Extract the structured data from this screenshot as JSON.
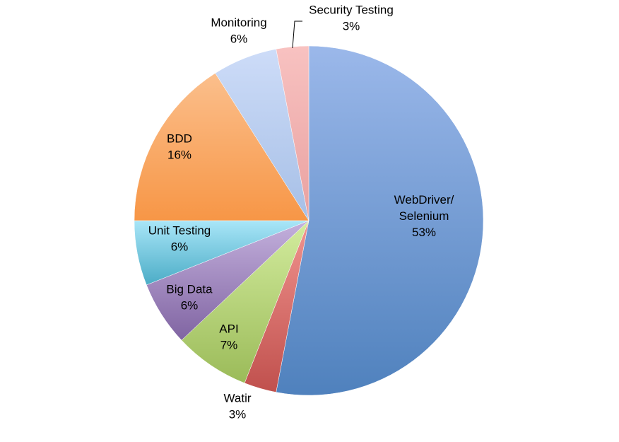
{
  "chart_data": {
    "type": "pie",
    "title": "",
    "slices": [
      {
        "label": "WebDriver/ Selenium",
        "label_lines": [
          "WebDriver/",
          "Selenium"
        ],
        "value": 53,
        "value_label": "53%",
        "color": "#4f81bd",
        "color_light": "#9bb8ea"
      },
      {
        "label": "Watir",
        "label_lines": [
          "Watir"
        ],
        "value": 3,
        "value_label": "3%",
        "color": "#c0504d",
        "color_light": "#f1948f"
      },
      {
        "label": "API",
        "label_lines": [
          "API"
        ],
        "value": 7,
        "value_label": "7%",
        "color": "#9bbb59",
        "color_light": "#d3ec9e"
      },
      {
        "label": "Big Data",
        "label_lines": [
          "Big Data"
        ],
        "value": 6,
        "value_label": "6%",
        "color": "#8064a2",
        "color_light": "#c4b1dd"
      },
      {
        "label": "Unit Testing",
        "label_lines": [
          "Unit Testing"
        ],
        "value": 6,
        "value_label": "6%",
        "color": "#4bacc6",
        "color_light": "#a9e6f8"
      },
      {
        "label": "BDD",
        "label_lines": [
          "BDD"
        ],
        "value": 16,
        "value_label": "16%",
        "color": "#f79646",
        "color_light": "#fbbf8c"
      },
      {
        "label": "Monitoring",
        "label_lines": [
          "Monitoring"
        ],
        "value": 6,
        "value_label": "6%",
        "color": "#a6bfe6",
        "color_light": "#cddcf8"
      },
      {
        "label": "Security Testing",
        "label_lines": [
          "Security Testing"
        ],
        "value": 3,
        "value_label": "3%",
        "color": "#e9a1a0",
        "color_light": "#f8c2c1"
      }
    ],
    "start_angle_deg": 0,
    "direction": "clockwise",
    "legend": "none",
    "labels": "category and percent"
  }
}
